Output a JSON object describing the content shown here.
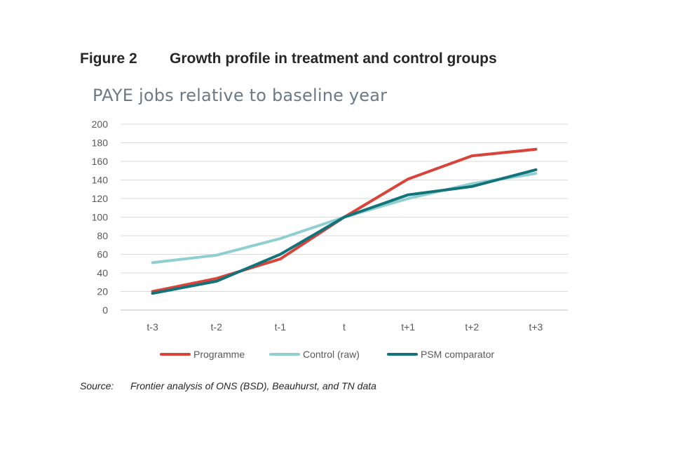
{
  "figure": {
    "label": "Figure 2",
    "title": "Growth profile in treatment and control groups"
  },
  "source": {
    "label": "Source:",
    "text": "Frontier analysis of ONS (BSD), Beauhurst, and TN data"
  },
  "chart_data": {
    "type": "line",
    "title": "PAYE jobs relative to baseline year",
    "xlabel": "",
    "ylabel": "",
    "categories": [
      "t-3",
      "t-2",
      "t-1",
      "t",
      "t+1",
      "t+2",
      "t+3"
    ],
    "ylim": [
      0,
      200
    ],
    "yticks": [
      0,
      20,
      40,
      60,
      80,
      100,
      120,
      140,
      160,
      180,
      200
    ],
    "grid": true,
    "legend_position": "bottom",
    "series": [
      {
        "name": "Programme",
        "color": "#d9443a",
        "values": [
          20,
          34,
          55,
          100,
          141,
          166,
          173
        ]
      },
      {
        "name": "Control (raw)",
        "color": "#8fcfcf",
        "values": [
          51,
          59,
          77,
          100,
          120,
          136,
          147
        ]
      },
      {
        "name": "PSM comparator",
        "color": "#13737b",
        "values": [
          18,
          31,
          60,
          100,
          124,
          133,
          151
        ]
      }
    ]
  }
}
